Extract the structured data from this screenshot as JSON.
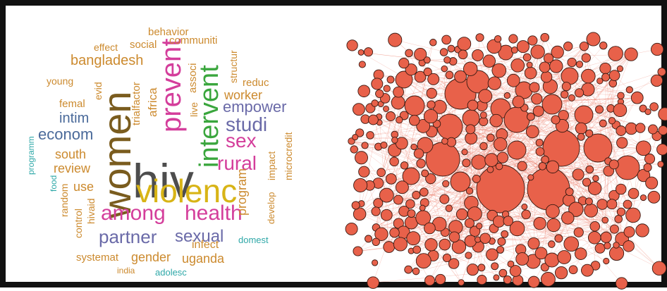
{
  "figure": {
    "word_cloud": {
      "words": [
        {
          "text": "hiv",
          "color": "#4d4d4d"
        },
        {
          "text": "women",
          "color": "#7a5c1e"
        },
        {
          "text": "violenc",
          "color": "#d8b416"
        },
        {
          "text": "prevent",
          "color": "#d43e9b"
        },
        {
          "text": "intervent",
          "color": "#3aa63d"
        },
        {
          "text": "among",
          "color": "#d43e9b"
        },
        {
          "text": "health",
          "color": "#d43e9b"
        },
        {
          "text": "partner",
          "color": "#6a6aa8"
        },
        {
          "text": "sexual",
          "color": "#6a6aa8"
        },
        {
          "text": "rural",
          "color": "#d43e9b"
        },
        {
          "text": "sex",
          "color": "#d43e9b"
        },
        {
          "text": "studi",
          "color": "#6a6aa8"
        },
        {
          "text": "empower",
          "color": "#6a6aa8"
        },
        {
          "text": "worker",
          "color": "#cc8a2e"
        },
        {
          "text": "econom",
          "color": "#4a6a9a"
        },
        {
          "text": "intim",
          "color": "#4a6a9a"
        },
        {
          "text": "bangladesh",
          "color": "#cc8a2e"
        },
        {
          "text": "south",
          "color": "#cc8a2e"
        },
        {
          "text": "review",
          "color": "#cc8a2e"
        },
        {
          "text": "use",
          "color": "#cc8a2e"
        },
        {
          "text": "gender",
          "color": "#cc8a2e"
        },
        {
          "text": "uganda",
          "color": "#cc8a2e"
        },
        {
          "text": "infect",
          "color": "#cc8a2e"
        },
        {
          "text": "program",
          "color": "#cc8a2e"
        },
        {
          "text": "femal",
          "color": "#cc8a2e"
        },
        {
          "text": "young",
          "color": "#cc8a2e"
        },
        {
          "text": "effect",
          "color": "#cc8a2e"
        },
        {
          "text": "social",
          "color": "#cc8a2e"
        },
        {
          "text": "behavior",
          "color": "#cc8a2e"
        },
        {
          "text": "communiti",
          "color": "#cc8a2e"
        },
        {
          "text": "associ",
          "color": "#cc8a2e"
        },
        {
          "text": "africa",
          "color": "#cc8a2e"
        },
        {
          "text": "trialfactor",
          "color": "#cc8a2e"
        },
        {
          "text": "live",
          "color": "#cc8a2e"
        },
        {
          "text": "structur",
          "color": "#cc8a2e"
        },
        {
          "text": "reduc",
          "color": "#cc8a2e"
        },
        {
          "text": "evid",
          "color": "#cc8a2e"
        },
        {
          "text": "impact",
          "color": "#cc8a2e"
        },
        {
          "text": "microcredit",
          "color": "#cc8a2e"
        },
        {
          "text": "develop",
          "color": "#cc8a2e"
        },
        {
          "text": "systemat",
          "color": "#cc8a2e"
        },
        {
          "text": "india",
          "color": "#cc8a2e"
        },
        {
          "text": "control",
          "color": "#cc8a2e"
        },
        {
          "text": "random",
          "color": "#cc8a2e"
        },
        {
          "text": "hivaid",
          "color": "#cc8a2e"
        },
        {
          "text": "programm",
          "color": "#2fa8a8"
        },
        {
          "text": "food",
          "color": "#2fa8a8"
        },
        {
          "text": "domest",
          "color": "#2fa8a8"
        },
        {
          "text": "adolesc",
          "color": "#2fa8a8"
        }
      ]
    },
    "network": {
      "node_fill": "#e8614a",
      "node_stroke": "#3a1a12",
      "edge_color": "#e8614a"
    }
  }
}
